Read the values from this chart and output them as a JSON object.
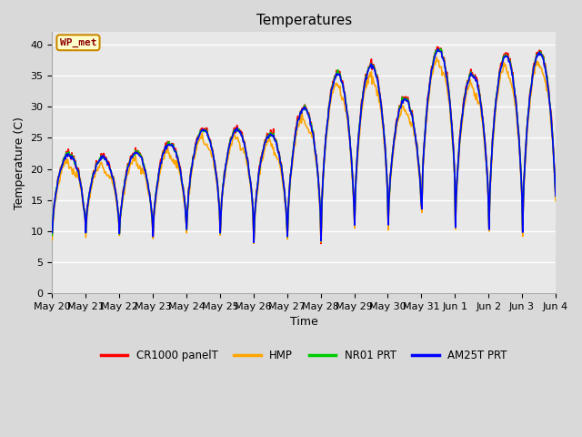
{
  "title": "Temperatures",
  "xlabel": "Time",
  "ylabel": "Temperature (C)",
  "ylim": [
    0,
    42
  ],
  "yticks": [
    0,
    5,
    10,
    15,
    20,
    25,
    30,
    35,
    40
  ],
  "bg_color": "#d9d9d9",
  "plot_bg_color": "#e8e8e8",
  "legend_entries": [
    "CR1000 panelT",
    "HMP",
    "NR01 PRT",
    "AM25T PRT"
  ],
  "legend_colors": [
    "#ff0000",
    "#ffa500",
    "#00cc00",
    "#0000ff"
  ],
  "annotation_text": "WP_met",
  "annotation_bg": "#ffffcc",
  "annotation_border": "#cc8800",
  "annotation_text_color": "#8b0000",
  "title_fontsize": 11,
  "label_fontsize": 9,
  "tick_fontsize": 8
}
